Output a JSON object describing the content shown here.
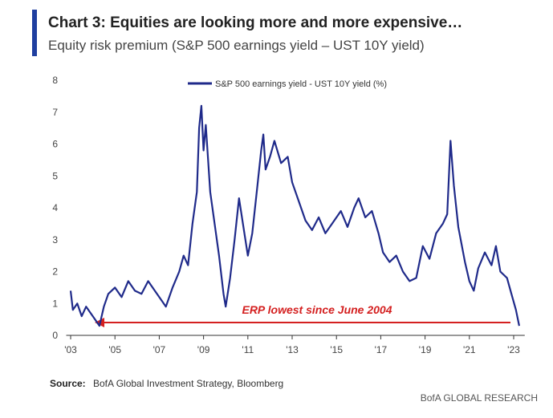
{
  "chart_data": {
    "type": "line",
    "title": "Chart 3: Equities are looking more and more expensive…",
    "subtitle": "Equity risk premium (S&P 500 earnings yield – UST 10Y yield)",
    "annotation": "ERP lowest since June 2004",
    "source_label": "Source:",
    "source": "BofA Global Investment Strategy, Bloomberg",
    "footer": "BofA GLOBAL RESEARCH",
    "x": [
      2003.0,
      2003.1,
      2003.3,
      2003.5,
      2003.7,
      2003.9,
      2004.1,
      2004.3,
      2004.5,
      2004.7,
      2005.0,
      2005.3,
      2005.6,
      2005.9,
      2006.2,
      2006.5,
      2006.8,
      2007.0,
      2007.3,
      2007.6,
      2007.9,
      2008.1,
      2008.3,
      2008.5,
      2008.7,
      2008.8,
      2008.9,
      2009.0,
      2009.1,
      2009.3,
      2009.5,
      2009.7,
      2009.9,
      2010.0,
      2010.2,
      2010.4,
      2010.6,
      2010.8,
      2011.0,
      2011.2,
      2011.4,
      2011.6,
      2011.7,
      2011.8,
      2012.0,
      2012.2,
      2012.5,
      2012.8,
      2013.0,
      2013.3,
      2013.6,
      2013.9,
      2014.2,
      2014.5,
      2014.8,
      2015.2,
      2015.5,
      2015.8,
      2016.0,
      2016.3,
      2016.6,
      2016.9,
      2017.1,
      2017.4,
      2017.7,
      2018.0,
      2018.3,
      2018.6,
      2018.9,
      2019.2,
      2019.5,
      2019.8,
      2020.0,
      2020.15,
      2020.3,
      2020.5,
      2020.8,
      2021.0,
      2021.2,
      2021.4,
      2021.7,
      2022.0,
      2022.2,
      2022.4,
      2022.7,
      2022.9,
      2023.1,
      2023.25
    ],
    "series": [
      {
        "name": "S&P 500 earnings yield - UST 10Y yield (%)",
        "color": "#1f2a8a",
        "values": [
          1.4,
          0.8,
          1.0,
          0.6,
          0.9,
          0.7,
          0.5,
          0.3,
          0.9,
          1.3,
          1.5,
          1.2,
          1.7,
          1.4,
          1.3,
          1.7,
          1.4,
          1.2,
          0.9,
          1.5,
          2.0,
          2.5,
          2.2,
          3.5,
          4.5,
          6.5,
          7.2,
          5.8,
          6.6,
          4.5,
          3.5,
          2.5,
          1.3,
          0.9,
          1.8,
          3.0,
          4.3,
          3.4,
          2.5,
          3.2,
          4.5,
          5.8,
          6.3,
          5.2,
          5.6,
          6.1,
          5.4,
          5.6,
          4.8,
          4.2,
          3.6,
          3.3,
          3.7,
          3.2,
          3.5,
          3.9,
          3.4,
          4.0,
          4.3,
          3.7,
          3.9,
          3.2,
          2.6,
          2.3,
          2.5,
          2.0,
          1.7,
          1.8,
          2.8,
          2.4,
          3.2,
          3.5,
          3.8,
          6.1,
          4.7,
          3.4,
          2.3,
          1.7,
          1.4,
          2.1,
          2.6,
          2.2,
          2.8,
          2.0,
          1.8,
          1.3,
          0.8,
          0.3
        ]
      }
    ],
    "xlim": [
      2002.8,
      2023.5
    ],
    "xticks": [
      {
        "value": 2003,
        "label": "'03"
      },
      {
        "value": 2005,
        "label": "'05"
      },
      {
        "value": 2007,
        "label": "'07"
      },
      {
        "value": 2009,
        "label": "'09"
      },
      {
        "value": 2011,
        "label": "'11"
      },
      {
        "value": 2013,
        "label": "'13"
      },
      {
        "value": 2015,
        "label": "'15"
      },
      {
        "value": 2017,
        "label": "'17"
      },
      {
        "value": 2019,
        "label": "'19"
      },
      {
        "value": 2021,
        "label": "'21"
      },
      {
        "value": 2023,
        "label": "'23"
      }
    ],
    "ylim": [
      0,
      8
    ],
    "yticks": [
      0,
      1,
      2,
      3,
      4,
      5,
      6,
      7,
      8
    ]
  }
}
